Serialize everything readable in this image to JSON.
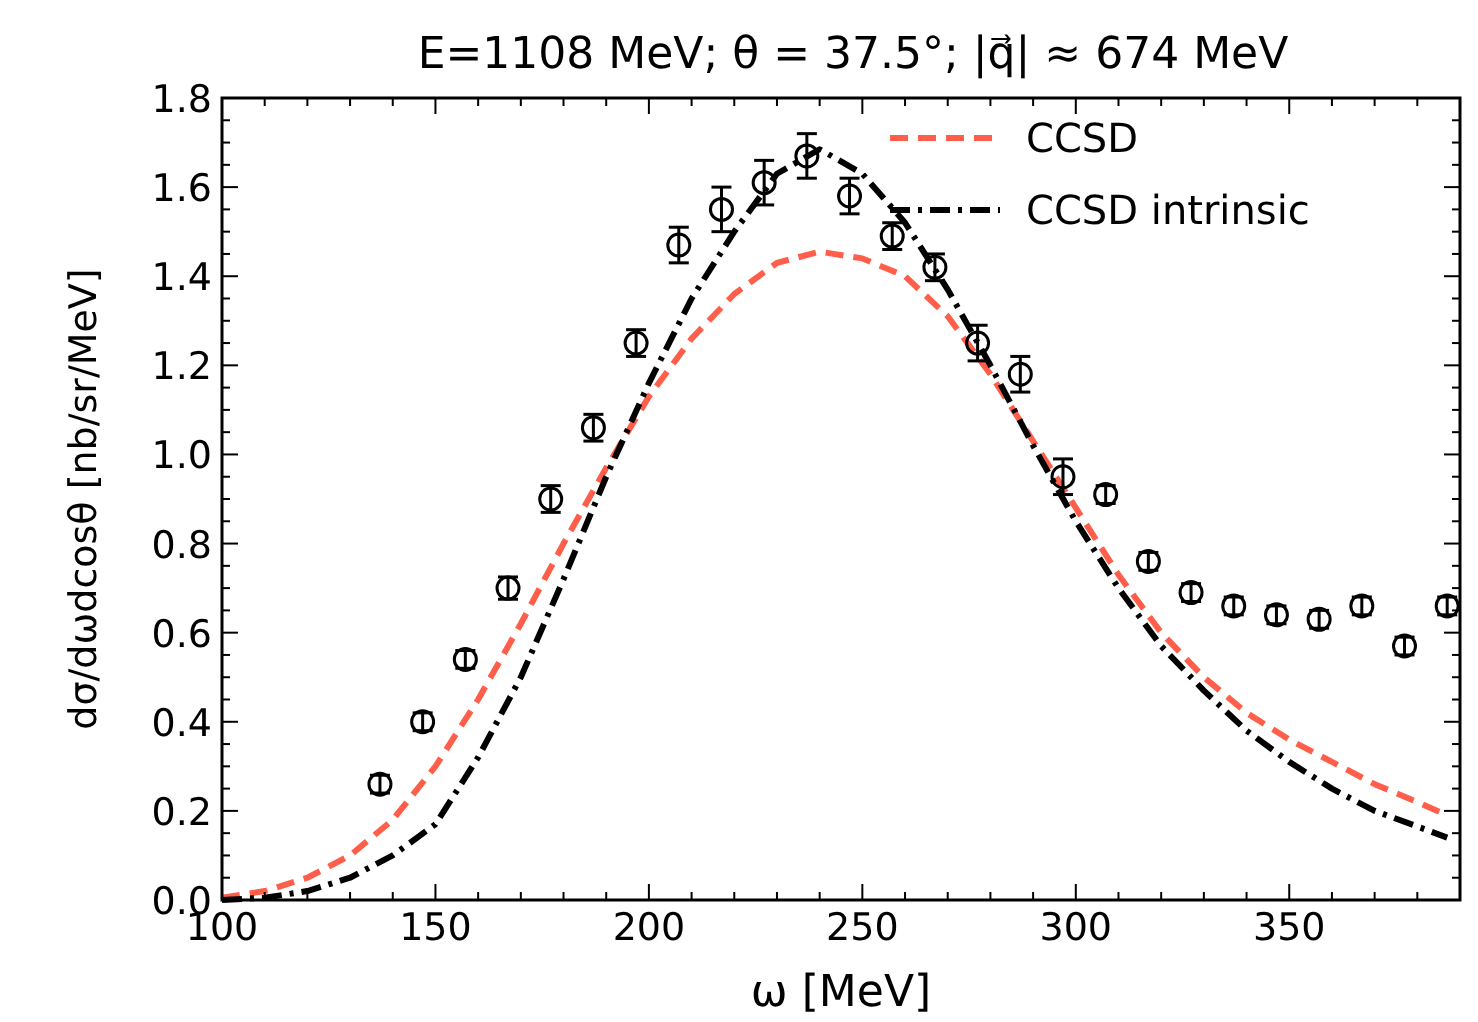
{
  "chart_data": {
    "type": "line",
    "title": "E=1108 MeV;  θ = 37.5°;     |q⃗| ≈  674 MeV",
    "xlabel": "ω  [MeV]",
    "ylabel": "dσ/dωdcosθ  [nb/sr/MeV]",
    "xlim": [
      100,
      390
    ],
    "ylim": [
      0,
      1.8
    ],
    "xticks": [
      100,
      {
        "value": 110,
        "label": null
      },
      {
        "value": 120,
        "label": null
      },
      {
        "value": 130,
        "label": null
      },
      {
        "value": 140,
        "label": null
      },
      150,
      {
        "value": 160,
        "label": null
      },
      {
        "value": 170,
        "label": null
      },
      {
        "value": 180,
        "label": null
      },
      {
        "value": 190,
        "label": null
      },
      200,
      {
        "value": 210,
        "label": null
      },
      {
        "value": 220,
        "label": null
      },
      {
        "value": 230,
        "label": null
      },
      {
        "value": 240,
        "label": null
      },
      250,
      {
        "value": 260,
        "label": null
      },
      {
        "value": 270,
        "label": null
      },
      {
        "value": 280,
        "label": null
      },
      {
        "value": 290,
        "label": null
      },
      300,
      {
        "value": 310,
        "label": null
      },
      {
        "value": 320,
        "label": null
      },
      {
        "value": 330,
        "label": null
      },
      {
        "value": 340,
        "label": null
      },
      350,
      {
        "value": 360,
        "label": null
      },
      {
        "value": 370,
        "label": null
      },
      {
        "value": 380,
        "label": null
      }
    ],
    "yticks": [
      {
        "value": 0,
        "label": "0.0"
      },
      {
        "value": 0.05,
        "label": null
      },
      {
        "value": 0.1,
        "label": null
      },
      {
        "value": 0.15,
        "label": null
      },
      0.2,
      {
        "value": 0.25,
        "label": null
      },
      {
        "value": 0.3,
        "label": null
      },
      {
        "value": 0.35,
        "label": null
      },
      0.4,
      {
        "value": 0.45,
        "label": null
      },
      {
        "value": 0.5,
        "label": null
      },
      {
        "value": 0.55,
        "label": null
      },
      0.6,
      {
        "value": 0.65,
        "label": null
      },
      {
        "value": 0.7,
        "label": null
      },
      {
        "value": 0.75,
        "label": null
      },
      0.8,
      {
        "value": 0.85,
        "label": null
      },
      {
        "value": 0.9,
        "label": null
      },
      {
        "value": 0.95,
        "label": null
      },
      {
        "value": 1,
        "label": "1.0"
      },
      {
        "value": 1.05,
        "label": null
      },
      {
        "value": 1.1,
        "label": null
      },
      {
        "value": 1.15,
        "label": null
      },
      1.2,
      {
        "value": 1.25,
        "label": null
      },
      {
        "value": 1.3,
        "label": null
      },
      {
        "value": 1.35,
        "label": null
      },
      1.4,
      {
        "value": 1.45,
        "label": null
      },
      {
        "value": 1.5,
        "label": null
      },
      {
        "value": 1.55,
        "label": null
      },
      1.6,
      {
        "value": 1.65,
        "label": null
      },
      {
        "value": 1.7,
        "label": null
      },
      {
        "value": 1.75,
        "label": null
      },
      1.8
    ],
    "grid": false,
    "legend": "top right",
    "series": [
      {
        "name": "CCSD",
        "color": "#ff5f4a",
        "line_style": "dashed",
        "marker": "none",
        "x": [
          100,
          110,
          120,
          130,
          140,
          150,
          160,
          170,
          180,
          190,
          200,
          210,
          220,
          230,
          240,
          250,
          260,
          270,
          280,
          290,
          300,
          310,
          320,
          330,
          340,
          350,
          360,
          370,
          380,
          387
        ],
        "values": [
          0.005,
          0.02,
          0.05,
          0.1,
          0.18,
          0.3,
          0.45,
          0.62,
          0.8,
          0.97,
          1.13,
          1.26,
          1.36,
          1.43,
          1.455,
          1.44,
          1.4,
          1.31,
          1.18,
          1.03,
          0.88,
          0.73,
          0.6,
          0.5,
          0.42,
          0.36,
          0.31,
          0.26,
          0.22,
          0.19
        ]
      },
      {
        "name": "CCSD intrinsic",
        "color": "#000000",
        "line_style": "dashdot",
        "marker": "none",
        "x": [
          100,
          110,
          120,
          130,
          140,
          150,
          160,
          170,
          180,
          190,
          200,
          210,
          220,
          230,
          240,
          250,
          260,
          270,
          280,
          290,
          300,
          310,
          320,
          330,
          340,
          350,
          360,
          370,
          380,
          387
        ],
        "values": [
          0,
          0.005,
          0.02,
          0.05,
          0.1,
          0.17,
          0.32,
          0.5,
          0.72,
          0.95,
          1.16,
          1.35,
          1.5,
          1.63,
          1.685,
          1.63,
          1.52,
          1.37,
          1.2,
          1.02,
          0.85,
          0.7,
          0.57,
          0.47,
          0.38,
          0.31,
          0.25,
          0.2,
          0.165,
          0.14
        ]
      },
      {
        "type": "scatter",
        "color": "#000000",
        "marker": "circle",
        "x": [
          137,
          147,
          157,
          167,
          177,
          187,
          197,
          207,
          217,
          227,
          237,
          247,
          257,
          267,
          277,
          287,
          297,
          307,
          317,
          327,
          337,
          347,
          357,
          367,
          377,
          387
        ],
        "values": [
          0.26,
          0.4,
          0.54,
          0.7,
          0.9,
          1.06,
          1.25,
          1.47,
          1.55,
          1.61,
          1.67,
          1.58,
          1.49,
          1.42,
          1.25,
          1.18,
          0.95,
          0.91,
          0.76,
          0.69,
          0.66,
          0.64,
          0.63,
          0.66,
          0.57,
          0.66
        ],
        "errors": [
          0.02,
          0.02,
          0.02,
          0.025,
          0.03,
          0.03,
          0.03,
          0.04,
          0.05,
          0.05,
          0.05,
          0.04,
          0.03,
          0.03,
          0.04,
          0.04,
          0.04,
          0.02,
          0.02,
          0.02,
          0.02,
          0.02,
          0.02,
          0.02,
          0.02,
          0.02
        ]
      }
    ]
  }
}
